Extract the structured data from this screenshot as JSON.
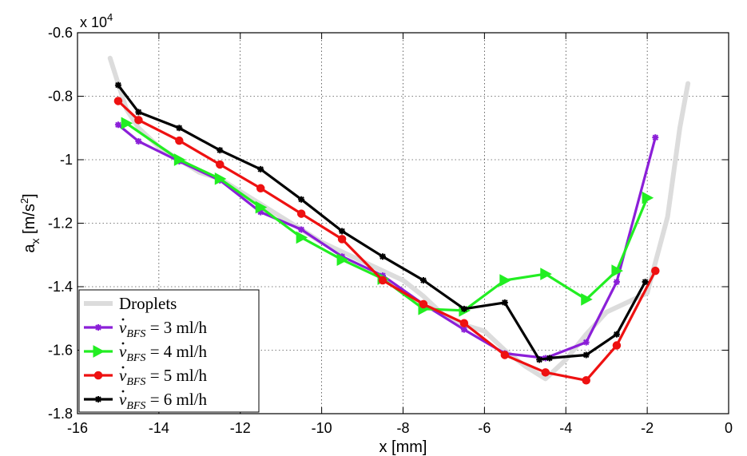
{
  "chart_data": {
    "type": "line",
    "exponent_label": {
      "prefix": "x 10",
      "power": "4"
    },
    "xlabel": "x [mm]",
    "ylabel": {
      "base": "a",
      "sub": "x",
      "unit_open": " [m/s",
      "unit_pow": "2",
      "unit_close": "]"
    },
    "xlim": [
      -16,
      0
    ],
    "ylim": [
      -1.8,
      -0.6
    ],
    "xticks": [
      -16,
      -14,
      -12,
      -10,
      -8,
      -6,
      -4,
      -2,
      0
    ],
    "yticks": [
      -1.8,
      -1.6,
      -1.4,
      -1.2,
      -1,
      -0.8,
      -0.6
    ],
    "xtick_labels": [
      "-16",
      "-14",
      "-12",
      "-10",
      "-8",
      "-6",
      "-4",
      "-2",
      "0"
    ],
    "ytick_labels": [
      "-1.8",
      "-1.6",
      "-1.4",
      "-1.2",
      "-1",
      "-0.8",
      "-0.6"
    ],
    "grid": true,
    "legend_position": "bottom-left",
    "series": [
      {
        "name": "Droplets",
        "color": "#dcdcdc",
        "marker": "none",
        "x": [
          -15.2,
          -15.0,
          -14.8,
          -14.5,
          -14.0,
          -13.5,
          -13.0,
          -12.5,
          -12.0,
          -11.5,
          -11.0,
          -10.5,
          -10.0,
          -9.5,
          -9.0,
          -8.5,
          -8.0,
          -7.5,
          -7.0,
          -6.5,
          -6.0,
          -5.5,
          -5.0,
          -4.5,
          -4.0,
          -3.5,
          -3.0,
          -2.5,
          -2.0,
          -1.5,
          -1.2,
          -1.0
        ],
        "y": [
          -0.68,
          -0.76,
          -0.84,
          -0.9,
          -0.96,
          -1.0,
          -1.04,
          -1.06,
          -1.1,
          -1.14,
          -1.18,
          -1.22,
          -1.26,
          -1.29,
          -1.32,
          -1.35,
          -1.38,
          -1.43,
          -1.49,
          -1.52,
          -1.54,
          -1.6,
          -1.65,
          -1.69,
          -1.63,
          -1.55,
          -1.48,
          -1.45,
          -1.42,
          -1.18,
          -0.9,
          -0.76
        ]
      },
      {
        "name": "v_BFS = 3 ml/h",
        "label_var": "v",
        "label_sub": "BFS",
        "label_rest": " = 3 ml/h",
        "color": "#8b1fd8",
        "marker": "star",
        "x": [
          -15.0,
          -14.5,
          -13.5,
          -12.5,
          -11.5,
          -10.5,
          -9.5,
          -8.5,
          -7.5,
          -6.5,
          -5.5,
          -4.5,
          -3.5,
          -2.75,
          -1.8
        ],
        "y": [
          -0.89,
          -0.942,
          -1.005,
          -1.065,
          -1.165,
          -1.22,
          -1.305,
          -1.365,
          -1.455,
          -1.535,
          -1.61,
          -1.625,
          -1.575,
          -1.385,
          -0.93
        ]
      },
      {
        "name": "v_BFS = 4 ml/h",
        "label_var": "v",
        "label_sub": "BFS",
        "label_rest": " = 4 ml/h",
        "color": "#22ee22",
        "marker": "triangle-right",
        "x": [
          -14.8,
          -13.5,
          -12.5,
          -11.5,
          -10.5,
          -9.5,
          -8.5,
          -7.5,
          -6.5,
          -5.5,
          -4.5,
          -3.5,
          -2.75,
          -2.0
        ],
        "y": [
          -0.885,
          -1.0,
          -1.06,
          -1.15,
          -1.245,
          -1.315,
          -1.375,
          -1.47,
          -1.475,
          -1.38,
          -1.36,
          -1.44,
          -1.35,
          -1.12
        ]
      },
      {
        "name": "v_BFS = 5 ml/h",
        "label_var": "v",
        "label_sub": "BFS",
        "label_rest": " = 5 ml/h",
        "color": "#ee1111",
        "marker": "circle",
        "x": [
          -15.0,
          -14.5,
          -13.5,
          -12.5,
          -11.5,
          -10.5,
          -9.5,
          -8.5,
          -7.5,
          -6.5,
          -5.5,
          -4.5,
          -3.5,
          -2.75,
          -1.8
        ],
        "y": [
          -0.815,
          -0.875,
          -0.94,
          -1.015,
          -1.09,
          -1.17,
          -1.25,
          -1.38,
          -1.455,
          -1.515,
          -1.615,
          -1.67,
          -1.695,
          -1.585,
          -1.35
        ]
      },
      {
        "name": "v_BFS = 6 ml/h",
        "label_var": "v",
        "label_sub": "BFS",
        "label_rest": " = 6 ml/h",
        "color": "#000000",
        "marker": "star",
        "x": [
          -15.0,
          -14.5,
          -13.5,
          -12.5,
          -11.5,
          -10.5,
          -9.5,
          -8.5,
          -7.5,
          -6.5,
          -5.5,
          -4.65,
          -4.4,
          -3.5,
          -2.75,
          -2.05
        ],
        "y": [
          -0.765,
          -0.85,
          -0.9,
          -0.97,
          -1.03,
          -1.125,
          -1.225,
          -1.305,
          -1.38,
          -1.47,
          -1.45,
          -1.63,
          -1.625,
          -1.615,
          -1.55,
          -1.385
        ]
      }
    ]
  }
}
